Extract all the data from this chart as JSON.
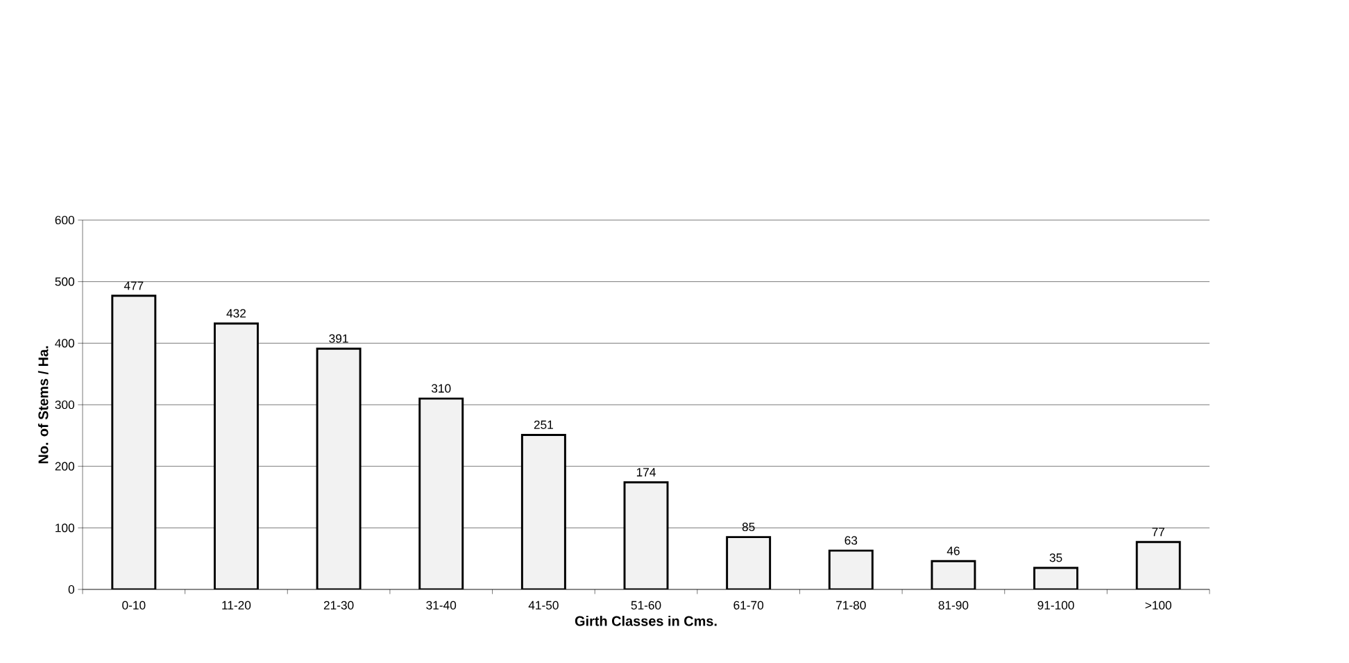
{
  "chart_data": {
    "type": "bar",
    "xlabel": "Girth Classes in Cms.",
    "ylabel": "No. of Stems / Ha.",
    "categories": [
      "0-10",
      "11-20",
      "21-30",
      "31-40",
      "41-50",
      "51-60",
      "61-70",
      "71-80",
      "81-90",
      "91-100",
      ">100"
    ],
    "values": [
      477,
      432,
      391,
      310,
      251,
      174,
      85,
      63,
      46,
      35,
      77
    ],
    "color": "#f2f2f2",
    "ylim": [
      0,
      600
    ],
    "yticks": [
      0,
      100,
      200,
      300,
      400,
      500,
      600
    ],
    "grid": "y",
    "data_labels": true
  }
}
